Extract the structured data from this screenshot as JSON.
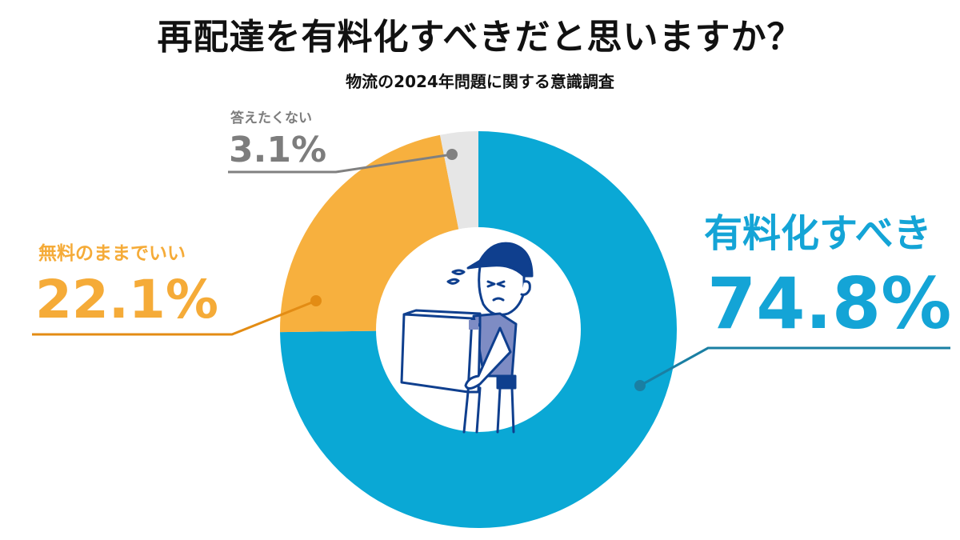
{
  "chart_data": {
    "type": "pie",
    "variant": "donut",
    "title": "再配達を有料化すべきだと思いますか？",
    "subtitle": "物流の2024年問題に関する意識調査",
    "slices": [
      {
        "label": "有料化すべき",
        "value": 74.8,
        "value_label": "74.8%",
        "color": "#0aa8d5"
      },
      {
        "label": "無料のままでいい",
        "value": 22.1,
        "value_label": "22.1%",
        "color": "#f7b03e"
      },
      {
        "label": "答えたくない",
        "value": 3.1,
        "value_label": "3.1%",
        "color": "#e6e6e6"
      }
    ],
    "start": "top",
    "direction": "clockwise"
  },
  "colors": {
    "navy": "#0f3f8e",
    "shirt": "#7e8cc4"
  }
}
